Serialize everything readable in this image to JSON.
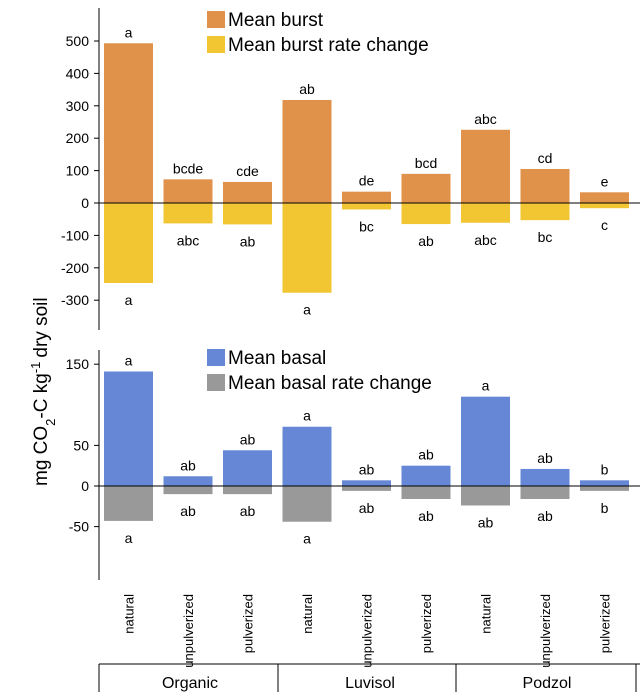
{
  "chart_data": [
    {
      "type": "bar",
      "title": "",
      "categories": [
        "natural",
        "unpulverized",
        "pulverized",
        "natural",
        "unpulverized",
        "pulverized",
        "natural",
        "unpulverized",
        "pulverized"
      ],
      "groups": [
        "Organic",
        "Luvisol",
        "Podzol"
      ],
      "series": [
        {
          "name": "Mean burst",
          "color": "#E0914A",
          "values": [
            493,
            73,
            65,
            318,
            35,
            90,
            226,
            105,
            33
          ],
          "labels": [
            "a",
            "bcde",
            "cde",
            "ab",
            "de",
            "bcd",
            "abc",
            "cd",
            "e"
          ]
        },
        {
          "name": "Mean burst rate change",
          "color": "#F2C532",
          "values": [
            -247,
            -63,
            -66,
            -277,
            -20,
            -65,
            -61,
            -53,
            -16
          ],
          "labels": [
            "a",
            "abc",
            "ab",
            "a",
            "bc",
            "ab",
            "abc",
            "bc",
            "c"
          ]
        }
      ],
      "yticks": [
        500,
        400,
        300,
        200,
        100,
        0,
        -100,
        -200,
        -300
      ],
      "ylim": [
        -370,
        600
      ]
    },
    {
      "type": "bar",
      "title": "",
      "categories": [
        "natural",
        "unpulverized",
        "pulverized",
        "natural",
        "unpulverized",
        "pulverized",
        "natural",
        "unpulverized",
        "pulverized"
      ],
      "groups": [
        "Organic",
        "Luvisol",
        "Podzol"
      ],
      "series": [
        {
          "name": "Mean basal",
          "color": "#6687D5",
          "values": [
            141,
            12,
            44,
            73,
            7,
            25,
            110,
            21,
            7
          ],
          "labels": [
            "a",
            "ab",
            "ab",
            "a",
            "ab",
            "ab",
            "a",
            "ab",
            "b"
          ]
        },
        {
          "name": "Mean basal rate change",
          "color": "#999999",
          "values": [
            -43,
            -10,
            -10,
            -44,
            -6,
            -16,
            -24,
            -16,
            -6
          ],
          "labels": [
            "a",
            "ab",
            "ab",
            "a",
            "ab",
            "ab",
            "ab",
            "ab",
            "b"
          ]
        }
      ],
      "yticks": [
        150,
        50,
        0,
        -50
      ],
      "ylim": [
        -90,
        160
      ]
    }
  ],
  "ylabel": "mg CO2-C kg-1 dry soil",
  "ylabel_parts": {
    "a": "mg CO",
    "sub": "2",
    "b": "-C kg",
    "sup": "-1",
    "c": "dry soil"
  }
}
